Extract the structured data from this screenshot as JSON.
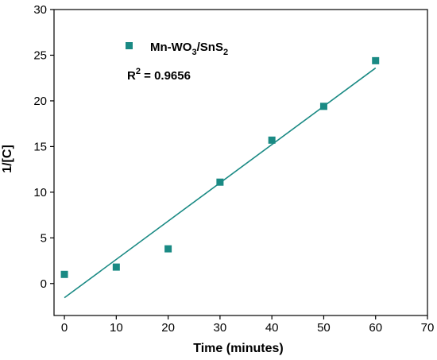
{
  "chart_data": {
    "type": "scatter",
    "title": "",
    "xlabel": "Time (minutes)",
    "ylabel": "1/[C]",
    "xlim": [
      -2,
      70
    ],
    "ylim": [
      -3.5,
      30
    ],
    "xticks": [
      0,
      10,
      20,
      30,
      40,
      50,
      60,
      70
    ],
    "yticks": [
      0,
      5,
      10,
      15,
      20,
      25,
      30
    ],
    "grid": false,
    "legend_placement": "top-left",
    "series": [
      {
        "name_parts": {
          "a": "Mn-WO",
          "b": "3",
          "c": "/SnS",
          "d": "2"
        },
        "color": "#1a8a84",
        "marker": "square",
        "x": [
          0,
          10,
          20,
          30,
          40,
          50,
          60
        ],
        "y": [
          1.0,
          1.8,
          3.8,
          11.1,
          15.7,
          19.4,
          24.4
        ]
      }
    ],
    "fit_line": {
      "color": "#1a8a84",
      "x": [
        0,
        60
      ],
      "y": [
        -1.55,
        23.6
      ]
    },
    "annotation": {
      "base": "R",
      "sup": "2",
      "rest": " = 0.9656"
    }
  }
}
